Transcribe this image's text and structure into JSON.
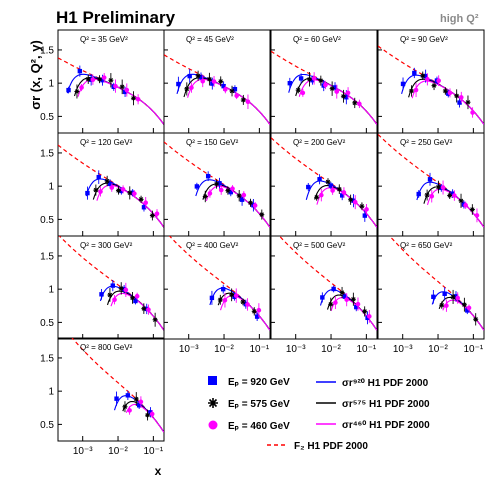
{
  "header": {
    "title": "H1 Preliminary",
    "subtitle": "high Q²"
  },
  "chart_data": {
    "type": "scatter",
    "ylabel": "σr (x, Q², y)",
    "xlabel": "x",
    "x_scale": "log",
    "xlim": [
      0.0002,
      0.2
    ],
    "ylim": [
      0.25,
      1.8
    ],
    "x_tick_labels": [
      "10⁻³",
      "10⁻²",
      "10⁻¹"
    ],
    "y_tick_labels": [
      "0.5",
      "1",
      "1.5"
    ],
    "q2_prefix": "Q² =",
    "q2_unit": "GeV²",
    "panels": [
      {
        "q2": 35,
        "label": "35"
      },
      {
        "q2": 45,
        "label": "45"
      },
      {
        "q2": 60,
        "label": "60"
      },
      {
        "q2": 90,
        "label": "90"
      },
      {
        "q2": 120,
        "label": "120"
      },
      {
        "q2": 150,
        "label": "150"
      },
      {
        "q2": 200,
        "label": "200"
      },
      {
        "q2": 250,
        "label": "250"
      },
      {
        "q2": 300,
        "label": "300"
      },
      {
        "q2": 400,
        "label": "400"
      },
      {
        "q2": 500,
        "label": "500"
      },
      {
        "q2": 650,
        "label": "650"
      },
      {
        "q2": 800,
        "label": "800"
      }
    ],
    "series": [
      {
        "name": "920",
        "marker": "square",
        "color": "#0000ff"
      },
      {
        "name": "575",
        "marker": "star",
        "color": "#000000"
      },
      {
        "name": "460",
        "marker": "circle",
        "color": "#ff00ff"
      }
    ],
    "legend": {
      "placement": "bottom-right",
      "markers": [
        {
          "text": "Eₚ = 920 GeV",
          "color": "#0000ff",
          "marker": "square"
        },
        {
          "text": "Eₚ = 575 GeV",
          "color": "#000000",
          "marker": "star"
        },
        {
          "text": "Eₚ = 460 GeV",
          "color": "#ff00ff",
          "marker": "circle"
        }
      ],
      "lines": [
        {
          "text": "σr⁹²⁰ H1 PDF 2000",
          "color": "#0000ff",
          "dash": "solid"
        },
        {
          "text": "σr⁵⁷⁵ H1 PDF 2000",
          "color": "#000000",
          "dash": "solid"
        },
        {
          "text": "σr⁴⁶⁰ H1 PDF 2000",
          "color": "#ff00ff",
          "dash": "solid"
        },
        {
          "text": "F₂  H1 PDF 2000",
          "color": "#ff0000",
          "dash": "dashed"
        }
      ]
    }
  }
}
